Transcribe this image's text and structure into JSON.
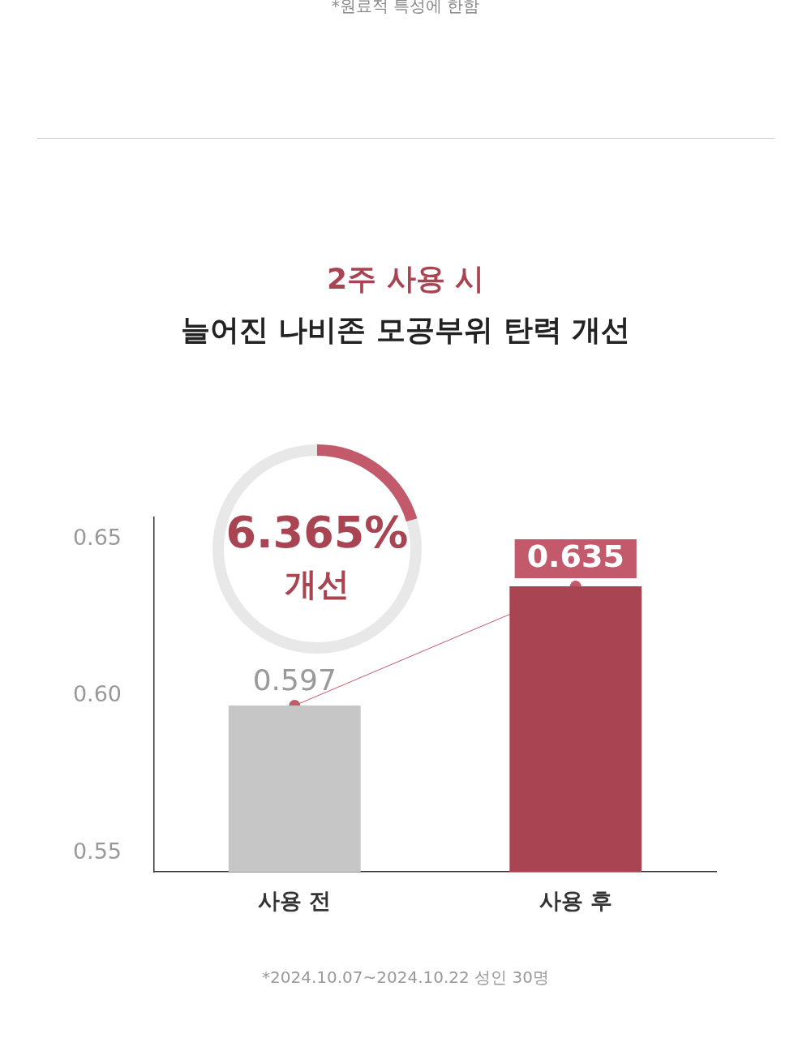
{
  "chart_data": {
    "type": "bar",
    "title": "2주 사용 시",
    "subtitle": "늘어진 나비존 모공부위 탄력 개선",
    "categories": [
      "사용 전",
      "사용 후"
    ],
    "colors": [
      "#c6c6c6",
      "#a94453"
    ],
    "values": [
      0.597,
      0.635
    ],
    "data_labels": true,
    "grid": false,
    "legend": false,
    "ylim": [
      0.544,
      0.657
    ],
    "yticks": [
      0.55,
      {
        "value": 0.6,
        "label": "0.60"
      },
      0.65
    ],
    "annotations": [
      "*원료적 특성에 한함",
      "6.365%",
      "개선",
      "*2024.10.07~2024.10.22 성인 30명"
    ]
  }
}
